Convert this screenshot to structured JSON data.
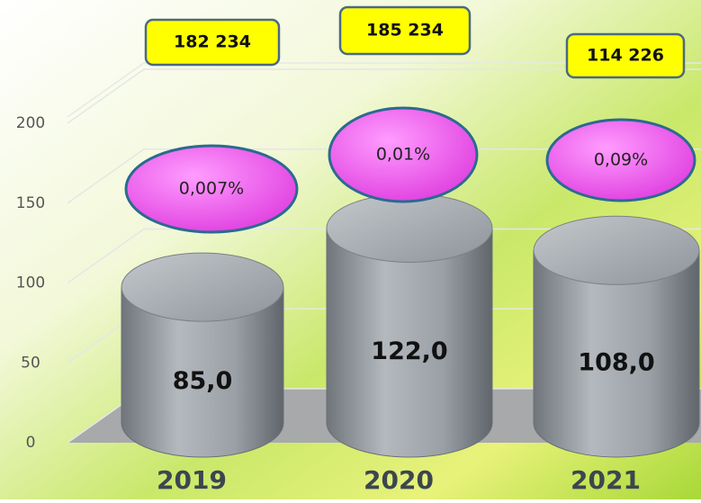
{
  "chart_data": {
    "type": "cylinder",
    "categories": [
      "2019",
      "2020",
      "2021"
    ],
    "values": [
      85,
      122,
      108
    ],
    "value_labels": [
      "85,0",
      "122,0",
      "108,0"
    ],
    "totals": [
      "182 234",
      "185 234",
      "114 226"
    ],
    "percentages": [
      "0,007%",
      "0,01%",
      "0,09%"
    ],
    "color": "#9aa0a6",
    "ylim": [
      0,
      200
    ],
    "yticks": [
      0,
      50,
      100,
      150,
      200
    ],
    "grid": true
  }
}
